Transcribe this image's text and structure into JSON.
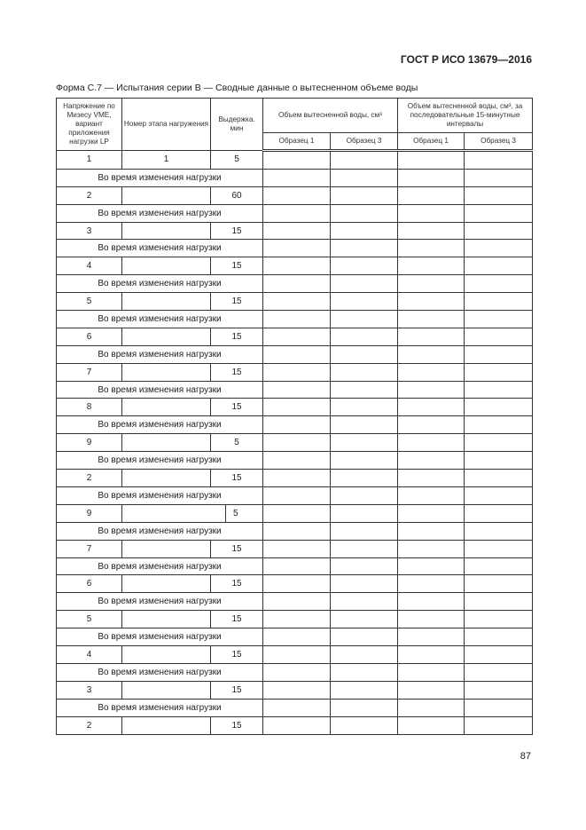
{
  "standard": "ГОСТ Р ИСО 13679—2016",
  "caption": "Форма С.7 — Испытания серии В — Сводные данные о вытесненном объеме воды",
  "page_number": "87",
  "table": {
    "headers": {
      "vme": "Напряжение по Мизесу VME, вариант приложения нагрузки LP",
      "stage": "Номер этапа нагружения",
      "hold": "Выдержка. мин",
      "volume": "Объем вытесненной воды, см³",
      "volume_intervals": "Объем вытесненной воды, см³, за последовательные 15-минутные интервалы",
      "sample1": "Образец 1",
      "sample3": "Образец 3",
      "sample1b": "Образец 1",
      "sample3b": "Образец 3"
    },
    "transition_label": "Во время изменения нагрузки",
    "rows": [
      {
        "vme": "1",
        "stage": "1",
        "hold": "5"
      },
      {
        "vme": "2",
        "stage": "",
        "hold": "60"
      },
      {
        "vme": "3",
        "stage": "",
        "hold": "15"
      },
      {
        "vme": "4",
        "stage": "",
        "hold": "15"
      },
      {
        "vme": "5",
        "stage": "",
        "hold": "15"
      },
      {
        "vme": "6",
        "stage": "",
        "hold": "15"
      },
      {
        "vme": "7",
        "stage": "",
        "hold": "15"
      },
      {
        "vme": "8",
        "stage": "",
        "hold": "15"
      },
      {
        "vme": "9",
        "stage": "",
        "hold": "5"
      },
      {
        "vme": "2",
        "stage": "",
        "hold": "15"
      },
      {
        "vme": "9",
        "stage": "",
        "hold": "5",
        "shifted": true
      },
      {
        "vme": "7",
        "stage": "",
        "hold": "15"
      },
      {
        "vme": "6",
        "stage": "",
        "hold": "15"
      },
      {
        "vme": "5",
        "stage": "",
        "hold": "15"
      },
      {
        "vme": "4",
        "stage": "",
        "hold": "15"
      },
      {
        "vme": "3",
        "stage": "",
        "hold": "15"
      },
      {
        "vme": "2",
        "stage": "",
        "hold": "15"
      }
    ]
  }
}
